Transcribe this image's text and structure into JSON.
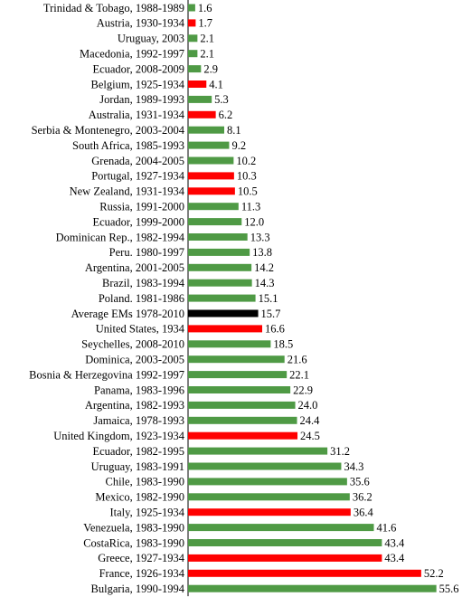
{
  "chart_data": {
    "type": "bar",
    "orientation": "horizontal",
    "categories": [
      "Trinidad & Tobago, 1988-1989",
      "Austria, 1930-1934",
      "Uruguay, 2003",
      "Macedonia, 1992-1997",
      "Ecuador, 2008-2009",
      "Belgium, 1925-1934",
      "Jordan, 1989-1993",
      "Australia, 1931-1934",
      "Serbia & Montenegro, 2003-2004",
      "South Africa, 1985-1993",
      "Grenada, 2004-2005",
      "Portugal, 1927-1934",
      "New Zealand, 1931-1934",
      "Russia, 1991-2000",
      "Ecuador, 1999-2000",
      "Dominican Rep., 1982-1994",
      "Peru. 1980-1997",
      "Argentina, 2001-2005",
      "Brazil, 1983-1994",
      "Poland. 1981-1986",
      "Average EMs 1978-2010",
      "United States, 1934",
      "Seychelles, 2008-2010",
      "Dominica, 2003-2005",
      "Bosnia & Herzegovina 1992-1997",
      "Panama, 1983-1996",
      "Argentina, 1982-1993",
      "Jamaica, 1978-1993",
      "United Kingdom, 1923-1934",
      "Ecuador, 1982-1995",
      "Uruguay, 1983-1991",
      "Chile, 1983-1990",
      "Mexico, 1982-1990",
      "Italy, 1925-1934",
      "Venezuela, 1983-1990",
      "CostaRica, 1983-1990",
      "Greece, 1927-1934",
      "France, 1926-1934",
      "Bulgaria, 1990-1994"
    ],
    "values": [
      1.6,
      1.7,
      2.1,
      2.1,
      2.9,
      4.1,
      5.3,
      6.2,
      8.1,
      9.2,
      10.2,
      10.3,
      10.5,
      11.3,
      12.0,
      13.3,
      13.8,
      14.2,
      14.3,
      15.1,
      15.7,
      16.6,
      18.5,
      21.6,
      22.1,
      22.9,
      24.0,
      24.4,
      24.5,
      31.2,
      34.3,
      35.6,
      36.2,
      36.4,
      41.6,
      43.4,
      43.4,
      52.2,
      55.6
    ],
    "value_labels": [
      "1.6",
      "1.7",
      "2.1",
      "2.1",
      "2.9",
      "4.1",
      "5.3",
      "6.2",
      "8.1",
      "9.2",
      "10.2",
      "10.3",
      "10.5",
      "11.3",
      "12.0",
      "13.3",
      "13.8",
      "14.2",
      "14.3",
      "15.1",
      "15.7",
      "16.6",
      "18.5",
      "21.6",
      "22.1",
      "22.9",
      "24.0",
      "24.4",
      "24.5",
      "31.2",
      "34.3",
      "35.6",
      "36.2",
      "36.4",
      "41.6",
      "43.4",
      "43.4",
      "52.2",
      "55.6"
    ],
    "bar_groups": [
      "green",
      "red",
      "green",
      "green",
      "green",
      "red",
      "green",
      "red",
      "green",
      "green",
      "green",
      "red",
      "red",
      "green",
      "green",
      "green",
      "green",
      "green",
      "green",
      "green",
      "black",
      "red",
      "green",
      "green",
      "green",
      "green",
      "green",
      "green",
      "red",
      "green",
      "green",
      "green",
      "green",
      "red",
      "green",
      "green",
      "red",
      "red",
      "green"
    ],
    "colors": {
      "green": "#4f9a45",
      "red": "#ff0000",
      "black": "#000000"
    },
    "xlim": [
      0,
      56
    ],
    "grid": false,
    "legend": "none",
    "title": "",
    "xlabel": "",
    "ylabel": ""
  }
}
